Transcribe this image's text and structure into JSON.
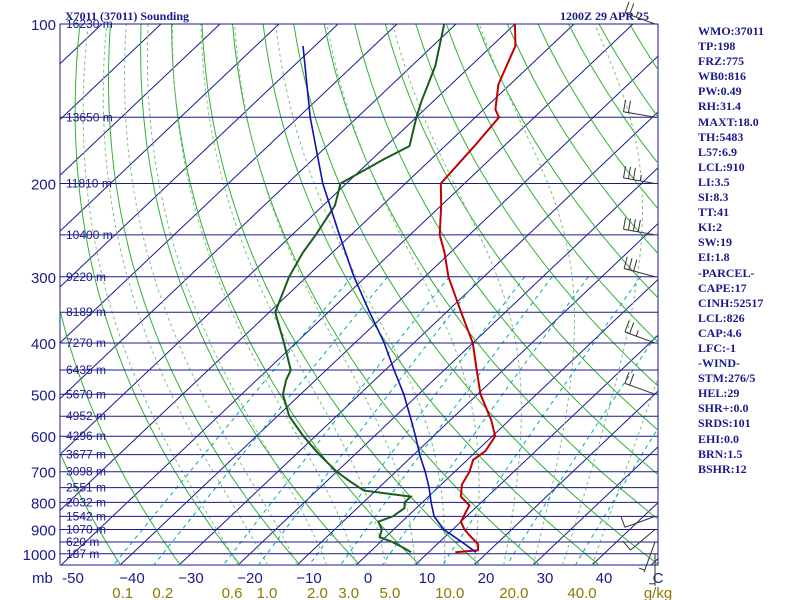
{
  "header": {
    "station": "X7011 (37011) Sounding",
    "time": "1200Z 29 APR 25"
  },
  "indices": [
    "WMO:37011",
    "TP:198",
    "FRZ:775",
    "WB0:816",
    "PW:0.49",
    "RH:31.4",
    "MAXT:18.0",
    "TH:5483",
    "L57:6.9",
    "LCL:910",
    "LI:3.5",
    "SI:8.3",
    "TT:41",
    "KI:2",
    "SW:19",
    "EI:1.8",
    "-PARCEL-",
    "CAPE:17",
    "CINH:52517",
    "LCL:826",
    "CAP:4.6",
    "LFC:-1",
    "-WIND-",
    "STM:276/5",
    "HEL:29",
    "SHR+:0.0",
    "SRDS:101",
    "EHI:0.0",
    "BRN:1.5",
    "BSHR:12"
  ],
  "colors": {
    "isobar": "#1a1a8c",
    "isotherm": "#1a1a8c",
    "dry_adiabat": "#33b033",
    "moist_adiabat": "#7fbf7f",
    "mixing_ratio": "#00aaaa",
    "temperature": "#c00000",
    "dewpoint": "#1a5c1a",
    "parcel": "#1010b0",
    "text": "#1a1a8c",
    "mixing_label": "#8c7a00",
    "wind": "#333333"
  },
  "chart_data": {
    "type": "line",
    "title": "",
    "xlabel": "",
    "ylabel": "mb",
    "y_scale": "log-pressure (skew-T)",
    "x_ticks": [
      -50,
      -40,
      -30,
      -20,
      -10,
      0,
      10,
      20,
      30,
      40
    ],
    "x_tick_labels": [
      "-50",
      "−40",
      "−30",
      "−20",
      "−10",
      "0",
      "10",
      "20",
      "30",
      "40"
    ],
    "x_extra_label": "C",
    "pressure_levels": [
      100,
      150,
      200,
      250,
      300,
      350,
      400,
      450,
      500,
      550,
      600,
      650,
      700,
      750,
      800,
      850,
      900,
      950,
      1000
    ],
    "pressure_tick_labels": [
      100,
      200,
      300,
      400,
      500,
      600,
      700,
      800,
      900,
      1000
    ],
    "heights": [
      {
        "p": 100,
        "label": "16230 m"
      },
      {
        "p": 150,
        "label": "13650 m"
      },
      {
        "p": 200,
        "label": "11810 m"
      },
      {
        "p": 250,
        "label": "10400 m"
      },
      {
        "p": 300,
        "label": "9220 m"
      },
      {
        "p": 350,
        "label": "8189 m"
      },
      {
        "p": 400,
        "label": "7270 m"
      },
      {
        "p": 450,
        "label": "6435 m"
      },
      {
        "p": 500,
        "label": "5670 m"
      },
      {
        "p": 550,
        "label": "4952 m"
      },
      {
        "p": 600,
        "label": "4296 m"
      },
      {
        "p": 650,
        "label": "3677 m"
      },
      {
        "p": 700,
        "label": "3098 m"
      },
      {
        "p": 750,
        "label": "2551 m"
      },
      {
        "p": 800,
        "label": "2032 m"
      },
      {
        "p": 850,
        "label": "1542 m"
      },
      {
        "p": 900,
        "label": "1070 m"
      },
      {
        "p": 950,
        "label": "620 m"
      },
      {
        "p": 1000,
        "label": "187 m"
      }
    ],
    "mixing_ratio_labels": [
      "0.1",
      "0.2",
      "0.6",
      "1.0",
      "2.0",
      "3.0",
      "5.0",
      "10.0",
      "20.0",
      "40.0"
    ],
    "mixing_ratio_unit": "g/kg",
    "mixing_ratio_values": [
      0.1,
      0.2,
      0.6,
      1.0,
      2.0,
      3.0,
      5.0,
      10.0,
      20.0,
      40.0
    ],
    "series": [
      {
        "key": "temperature",
        "points": [
          {
            "p": 993,
            "t": 14.5
          },
          {
            "p": 985,
            "t": 18.0
          },
          {
            "p": 960,
            "t": 17.0
          },
          {
            "p": 930,
            "t": 14.5
          },
          {
            "p": 900,
            "t": 12.0
          },
          {
            "p": 870,
            "t": 10.0
          },
          {
            "p": 850,
            "t": 9.5
          },
          {
            "p": 810,
            "t": 8.5
          },
          {
            "p": 780,
            "t": 5.5
          },
          {
            "p": 740,
            "t": 3.5
          },
          {
            "p": 700,
            "t": 2.5
          },
          {
            "p": 665,
            "t": 1.0
          },
          {
            "p": 640,
            "t": 1.5
          },
          {
            "p": 600,
            "t": 0.5
          },
          {
            "p": 560,
            "t": -3.0
          },
          {
            "p": 500,
            "t": -9.5
          },
          {
            "p": 450,
            "t": -14.5
          },
          {
            "p": 400,
            "t": -20.0
          },
          {
            "p": 350,
            "t": -27.5
          },
          {
            "p": 300,
            "t": -36.0
          },
          {
            "p": 270,
            "t": -41.0
          },
          {
            "p": 250,
            "t": -45.0
          },
          {
            "p": 220,
            "t": -50.0
          },
          {
            "p": 200,
            "t": -54.0
          },
          {
            "p": 170,
            "t": -55.0
          },
          {
            "p": 150,
            "t": -56.0
          },
          {
            "p": 145,
            "t": -58.0
          },
          {
            "p": 130,
            "t": -62.0
          },
          {
            "p": 110,
            "t": -66.0
          },
          {
            "p": 100,
            "t": -70.0
          }
        ]
      },
      {
        "key": "dewpoint",
        "points": [
          {
            "p": 993,
            "t": 7.0
          },
          {
            "p": 975,
            "t": 5.0
          },
          {
            "p": 950,
            "t": 2.0
          },
          {
            "p": 930,
            "t": -1.0
          },
          {
            "p": 900,
            "t": -2.0
          },
          {
            "p": 870,
            "t": -4.0
          },
          {
            "p": 850,
            "t": -2.5
          },
          {
            "p": 820,
            "t": -2.0
          },
          {
            "p": 800,
            "t": -3.0
          },
          {
            "p": 780,
            "t": -3.0
          },
          {
            "p": 760,
            "t": -12.0
          },
          {
            "p": 730,
            "t": -16.0
          },
          {
            "p": 700,
            "t": -20.0
          },
          {
            "p": 650,
            "t": -26.0
          },
          {
            "p": 600,
            "t": -32.0
          },
          {
            "p": 550,
            "t": -38.0
          },
          {
            "p": 500,
            "t": -43.0
          },
          {
            "p": 470,
            "t": -45.0
          },
          {
            "p": 450,
            "t": -46.0
          },
          {
            "p": 400,
            "t": -52.0
          },
          {
            "p": 350,
            "t": -59.0
          },
          {
            "p": 300,
            "t": -63.0
          },
          {
            "p": 270,
            "t": -65.0
          },
          {
            "p": 250,
            "t": -66.0
          },
          {
            "p": 220,
            "t": -68.0
          },
          {
            "p": 200,
            "t": -71.0
          },
          {
            "p": 180,
            "t": -68.0
          },
          {
            "p": 170,
            "t": -66.0
          },
          {
            "p": 150,
            "t": -70.0
          },
          {
            "p": 140,
            "t": -72.0
          },
          {
            "p": 120,
            "t": -76.0
          },
          {
            "p": 100,
            "t": -82.0
          }
        ]
      },
      {
        "key": "parcel",
        "points": [
          {
            "p": 993,
            "t": 18.0
          },
          {
            "p": 950,
            "t": 13.8
          },
          {
            "p": 900,
            "t": 8.5
          },
          {
            "p": 850,
            "t": 4.5
          },
          {
            "p": 800,
            "t": 1.5
          },
          {
            "p": 750,
            "t": -1.5
          },
          {
            "p": 700,
            "t": -5.0
          },
          {
            "p": 650,
            "t": -9.0
          },
          {
            "p": 600,
            "t": -13.0
          },
          {
            "p": 550,
            "t": -17.5
          },
          {
            "p": 500,
            "t": -22.5
          },
          {
            "p": 450,
            "t": -28.5
          },
          {
            "p": 400,
            "t": -35.0
          },
          {
            "p": 350,
            "t": -43.0
          },
          {
            "p": 300,
            "t": -52.0
          },
          {
            "p": 250,
            "t": -62.0
          },
          {
            "p": 200,
            "t": -74.0
          },
          {
            "p": 150,
            "t": -88.0
          },
          {
            "p": 110,
            "t": -102.0
          }
        ]
      }
    ],
    "dry_adiabats_theta_k": [
      220,
      230,
      240,
      250,
      260,
      270,
      280,
      290,
      300,
      310,
      320,
      330,
      340,
      350,
      360,
      370,
      380,
      390,
      400,
      410,
      420,
      430,
      440,
      450,
      460,
      470,
      480,
      490,
      500
    ],
    "moist_adiabats_start_c": [
      -20,
      -15,
      -10,
      -5,
      0,
      5,
      10,
      15,
      20,
      25,
      30,
      35,
      40
    ],
    "winds": [
      {
        "p": 100,
        "dir": 290,
        "spd": 25
      },
      {
        "p": 150,
        "dir": 280,
        "spd": 20
      },
      {
        "p": 200,
        "dir": 280,
        "spd": 35
      },
      {
        "p": 250,
        "dir": 280,
        "spd": 40
      },
      {
        "p": 300,
        "dir": 285,
        "spd": 30
      },
      {
        "p": 400,
        "dir": 290,
        "spd": 25
      },
      {
        "p": 500,
        "dir": 290,
        "spd": 20
      },
      {
        "p": 850,
        "dir": 250,
        "spd": 10
      },
      {
        "p": 900,
        "dir": 230,
        "spd": 10
      },
      {
        "p": 950,
        "dir": 200,
        "spd": 5
      },
      {
        "p": 1000,
        "dir": 180,
        "spd": 5
      }
    ]
  }
}
